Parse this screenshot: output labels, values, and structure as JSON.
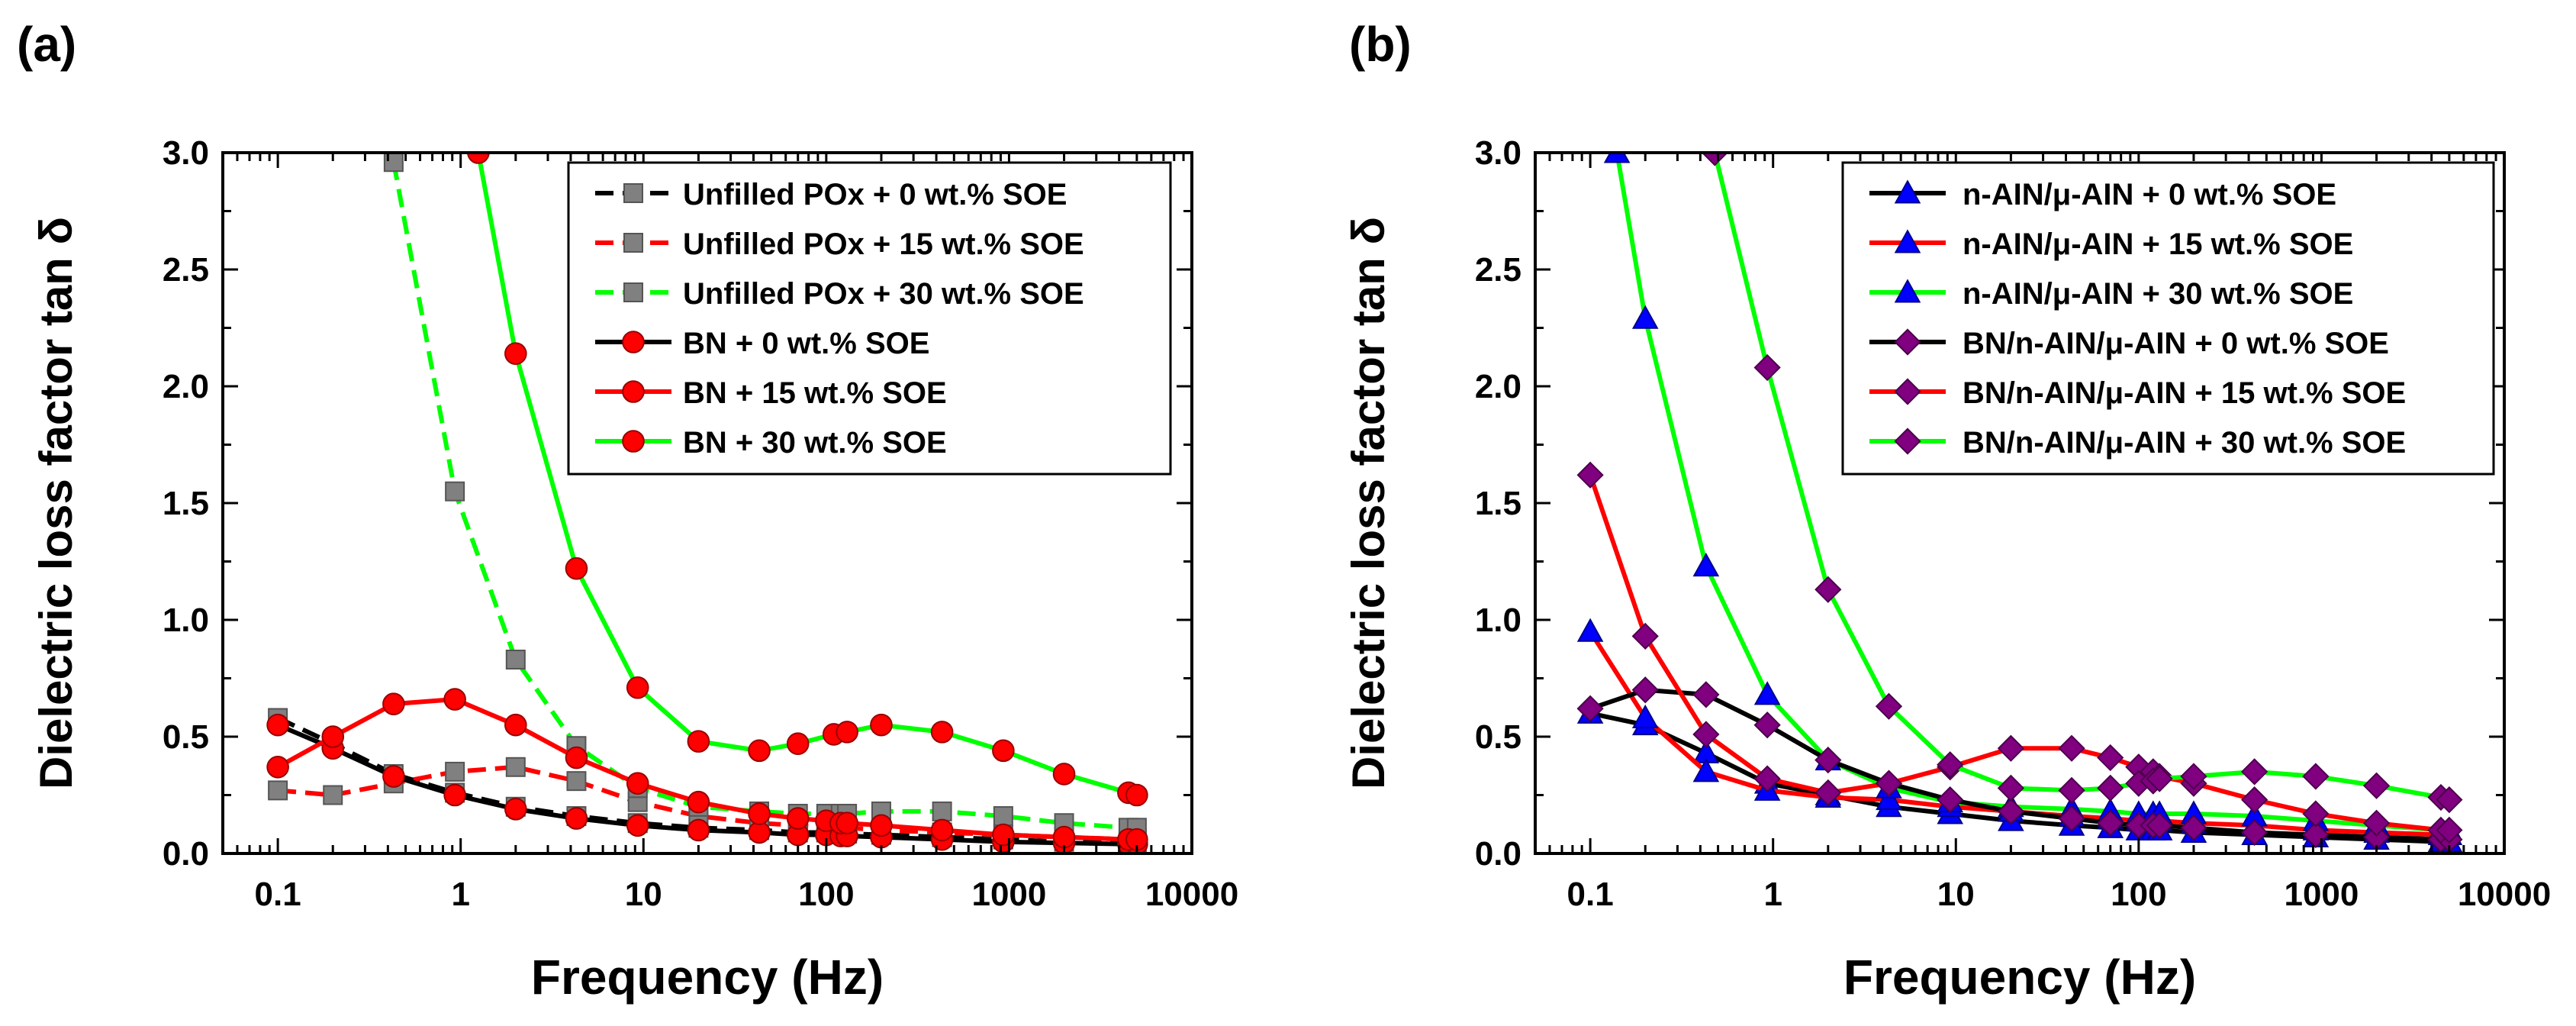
{
  "chart_data": [
    {
      "panel_label": "(a)",
      "type": "line",
      "xscale": "log",
      "xlabel": "Frequency (Hz)",
      "ylabel": "Dielectric loss factor tan δ",
      "xlim": [
        0.05,
        10000
      ],
      "ylim": [
        0,
        3.0
      ],
      "xtick_values": [
        0.1,
        1,
        10,
        100,
        1000,
        10000
      ],
      "xtick_labels": [
        "0.1",
        "1",
        "10",
        "100",
        "1000",
        "10000"
      ],
      "ytick_values": [
        0,
        0.5,
        1.0,
        1.5,
        2.0,
        2.5,
        3.0
      ],
      "ytick_labels": [
        "0.0",
        "0.5",
        "1.0",
        "1.5",
        "2.0",
        "2.5",
        "3.0"
      ],
      "legend_position": "top-right",
      "series": [
        {
          "name": "Unfilled POx + 0 wt.% SOE",
          "color": "#000000",
          "marker": "square",
          "marker_fill": "#808080",
          "dashed": true,
          "x": [
            0.1,
            0.2,
            0.43,
            0.93,
            2,
            4.3,
            9.3,
            20,
            43,
            70,
            100,
            120,
            130,
            200,
            430,
            930,
            2000,
            4500,
            5000
          ],
          "y": [
            0.58,
            0.47,
            0.34,
            0.26,
            0.2,
            0.16,
            0.13,
            0.11,
            0.1,
            0.09,
            0.09,
            0.085,
            0.085,
            0.08,
            0.07,
            0.06,
            0.05,
            0.045,
            0.045
          ]
        },
        {
          "name": "Unfilled POx + 15 wt.% SOE",
          "color": "#ff0000",
          "marker": "square",
          "marker_fill": "#808080",
          "dashed": true,
          "x": [
            0.1,
            0.2,
            0.43,
            0.93,
            2,
            4.3,
            9.3,
            20,
            43,
            70,
            100,
            120,
            130,
            200,
            430,
            930,
            2000,
            4500,
            5000
          ],
          "y": [
            0.27,
            0.25,
            0.3,
            0.35,
            0.37,
            0.31,
            0.22,
            0.16,
            0.13,
            0.12,
            0.11,
            0.11,
            0.11,
            0.1,
            0.09,
            0.08,
            0.07,
            0.06,
            0.06
          ]
        },
        {
          "name": "Unfilled POx + 30 wt.% SOE",
          "color": "#00ff00",
          "marker": "square",
          "marker_fill": "#808080",
          "dashed": true,
          "x": [
            0.43,
            0.93,
            2,
            4.3,
            9.3,
            20,
            43,
            70,
            100,
            120,
            130,
            200,
            430,
            930,
            2000,
            4500,
            5000
          ],
          "y": [
            2.96,
            1.55,
            0.83,
            0.46,
            0.28,
            0.2,
            0.18,
            0.17,
            0.17,
            0.17,
            0.17,
            0.18,
            0.18,
            0.16,
            0.13,
            0.11,
            0.11
          ]
        },
        {
          "name": "BN + 0 wt.% SOE",
          "color": "#000000",
          "marker": "circle",
          "marker_fill": "#ff0000",
          "dashed": false,
          "x": [
            0.1,
            0.2,
            0.43,
            0.93,
            2,
            4.3,
            9.3,
            20,
            43,
            70,
            100,
            120,
            130,
            200,
            430,
            930,
            2000,
            4500,
            5000
          ],
          "y": [
            0.55,
            0.45,
            0.33,
            0.25,
            0.19,
            0.15,
            0.12,
            0.1,
            0.09,
            0.08,
            0.08,
            0.075,
            0.075,
            0.07,
            0.06,
            0.05,
            0.045,
            0.04,
            0.04
          ]
        },
        {
          "name": "BN + 15 wt.% SOE",
          "color": "#ff0000",
          "marker": "circle",
          "marker_fill": "#ff0000",
          "dashed": false,
          "x": [
            0.1,
            0.2,
            0.43,
            0.93,
            2,
            4.3,
            9.3,
            20,
            43,
            70,
            100,
            120,
            130,
            200,
            430,
            930,
            2000,
            4500,
            5000
          ],
          "y": [
            0.37,
            0.5,
            0.64,
            0.66,
            0.55,
            0.41,
            0.3,
            0.22,
            0.17,
            0.15,
            0.14,
            0.13,
            0.13,
            0.12,
            0.1,
            0.08,
            0.07,
            0.06,
            0.06
          ]
        },
        {
          "name": "BN + 30 wt.% SOE",
          "color": "#00ff00",
          "marker": "circle",
          "marker_fill": "#ff0000",
          "dashed": false,
          "x": [
            1.25,
            2,
            4.3,
            9.3,
            20,
            43,
            70,
            110,
            130,
            200,
            430,
            930,
            2000,
            4500,
            5000
          ],
          "y": [
            3.0,
            2.14,
            1.22,
            0.71,
            0.48,
            0.44,
            0.47,
            0.51,
            0.52,
            0.55,
            0.52,
            0.44,
            0.34,
            0.26,
            0.25
          ]
        }
      ]
    },
    {
      "panel_label": "(b)",
      "type": "line",
      "xscale": "log",
      "xlabel": "Frequency (Hz)",
      "ylabel": "Dielectric loss factor tan δ",
      "xlim": [
        0.05,
        10000
      ],
      "ylim": [
        0,
        3.0
      ],
      "xtick_values": [
        0.1,
        1,
        10,
        100,
        1000,
        10000
      ],
      "xtick_labels": [
        "0.1",
        "1",
        "10",
        "100",
        "1000",
        "10000"
      ],
      "ytick_values": [
        0,
        0.5,
        1.0,
        1.5,
        2.0,
        2.5,
        3.0
      ],
      "ytick_labels": [
        "0.0",
        "0.5",
        "1.0",
        "1.5",
        "2.0",
        "2.5",
        "3.0"
      ],
      "legend_position": "top-right",
      "series": [
        {
          "name": "n-AIN/μ-AIN + 0 wt.% SOE",
          "color": "#000000",
          "marker": "triangle",
          "marker_fill": "#0000ff",
          "dashed": false,
          "x": [
            0.1,
            0.2,
            0.43,
            0.93,
            2,
            4.3,
            9.3,
            20,
            43,
            70,
            100,
            120,
            130,
            200,
            430,
            930,
            2000,
            4500,
            5000
          ],
          "y": [
            0.6,
            0.55,
            0.43,
            0.3,
            0.25,
            0.2,
            0.17,
            0.14,
            0.12,
            0.11,
            0.1,
            0.1,
            0.1,
            0.09,
            0.08,
            0.07,
            0.06,
            0.05,
            0.05
          ]
        },
        {
          "name": "n-AIN/μ-AIN + 15 wt.% SOE",
          "color": "#ff0000",
          "marker": "triangle",
          "marker_fill": "#0000ff",
          "dashed": false,
          "x": [
            0.1,
            0.2,
            0.43,
            0.93,
            2,
            4.3,
            9.3,
            20,
            43,
            70,
            100,
            120,
            130,
            200,
            430,
            930,
            2000,
            4500,
            5000
          ],
          "y": [
            0.95,
            0.58,
            0.35,
            0.27,
            0.24,
            0.23,
            0.2,
            0.18,
            0.16,
            0.15,
            0.14,
            0.14,
            0.14,
            0.13,
            0.12,
            0.1,
            0.09,
            0.08,
            0.08
          ]
        },
        {
          "name": "n-AIN/μ-AIN + 30 wt.% SOE",
          "color": "#00ff00",
          "marker": "triangle",
          "marker_fill": "#0000ff",
          "dashed": false,
          "x": [
            0.14,
            0.2,
            0.43,
            0.93,
            2,
            4.3,
            9.3,
            20,
            43,
            70,
            100,
            120,
            130,
            200,
            430,
            930,
            2000,
            4500,
            5000
          ],
          "y": [
            3.0,
            2.29,
            1.23,
            0.68,
            0.4,
            0.28,
            0.22,
            0.2,
            0.19,
            0.18,
            0.17,
            0.17,
            0.17,
            0.17,
            0.16,
            0.14,
            0.12,
            0.1,
            0.1
          ]
        },
        {
          "name": "BN/n-AIN/μ-AIN + 0 wt.% SOE",
          "color": "#000000",
          "marker": "diamond",
          "marker_fill": "#800080",
          "dashed": false,
          "x": [
            0.1,
            0.2,
            0.43,
            0.93,
            2,
            4.3,
            9.3,
            20,
            43,
            70,
            100,
            120,
            130,
            200,
            430,
            930,
            2000,
            4500,
            5000
          ],
          "y": [
            0.62,
            0.7,
            0.68,
            0.55,
            0.4,
            0.3,
            0.23,
            0.18,
            0.15,
            0.13,
            0.12,
            0.12,
            0.12,
            0.11,
            0.09,
            0.08,
            0.07,
            0.06,
            0.06
          ]
        },
        {
          "name": "BN/n-AIN/μ-AIN + 15 wt.% SOE",
          "color": "#ff0000",
          "marker": "diamond",
          "marker_fill": "#800080",
          "dashed": false,
          "x": [
            0.1,
            0.2,
            0.43,
            0.93,
            2,
            4.3,
            9.3,
            20,
            43,
            70,
            100,
            120,
            130,
            200,
            430,
            930,
            2000,
            4500,
            5000
          ],
          "y": [
            1.62,
            0.93,
            0.51,
            0.32,
            0.26,
            0.3,
            0.37,
            0.45,
            0.45,
            0.41,
            0.37,
            0.35,
            0.33,
            0.3,
            0.23,
            0.17,
            0.13,
            0.1,
            0.1
          ]
        },
        {
          "name": "BN/n-AIN/μ-AIN + 30 wt.% SOE",
          "color": "#00ff00",
          "marker": "diamond",
          "marker_fill": "#800080",
          "dashed": false,
          "x": [
            0.48,
            0.93,
            2,
            4.3,
            9.3,
            20,
            43,
            70,
            100,
            120,
            130,
            200,
            430,
            930,
            2000,
            4500,
            5000
          ],
          "y": [
            3.0,
            2.08,
            1.13,
            0.63,
            0.38,
            0.28,
            0.27,
            0.28,
            0.3,
            0.31,
            0.32,
            0.33,
            0.35,
            0.33,
            0.29,
            0.24,
            0.23
          ]
        }
      ]
    }
  ]
}
